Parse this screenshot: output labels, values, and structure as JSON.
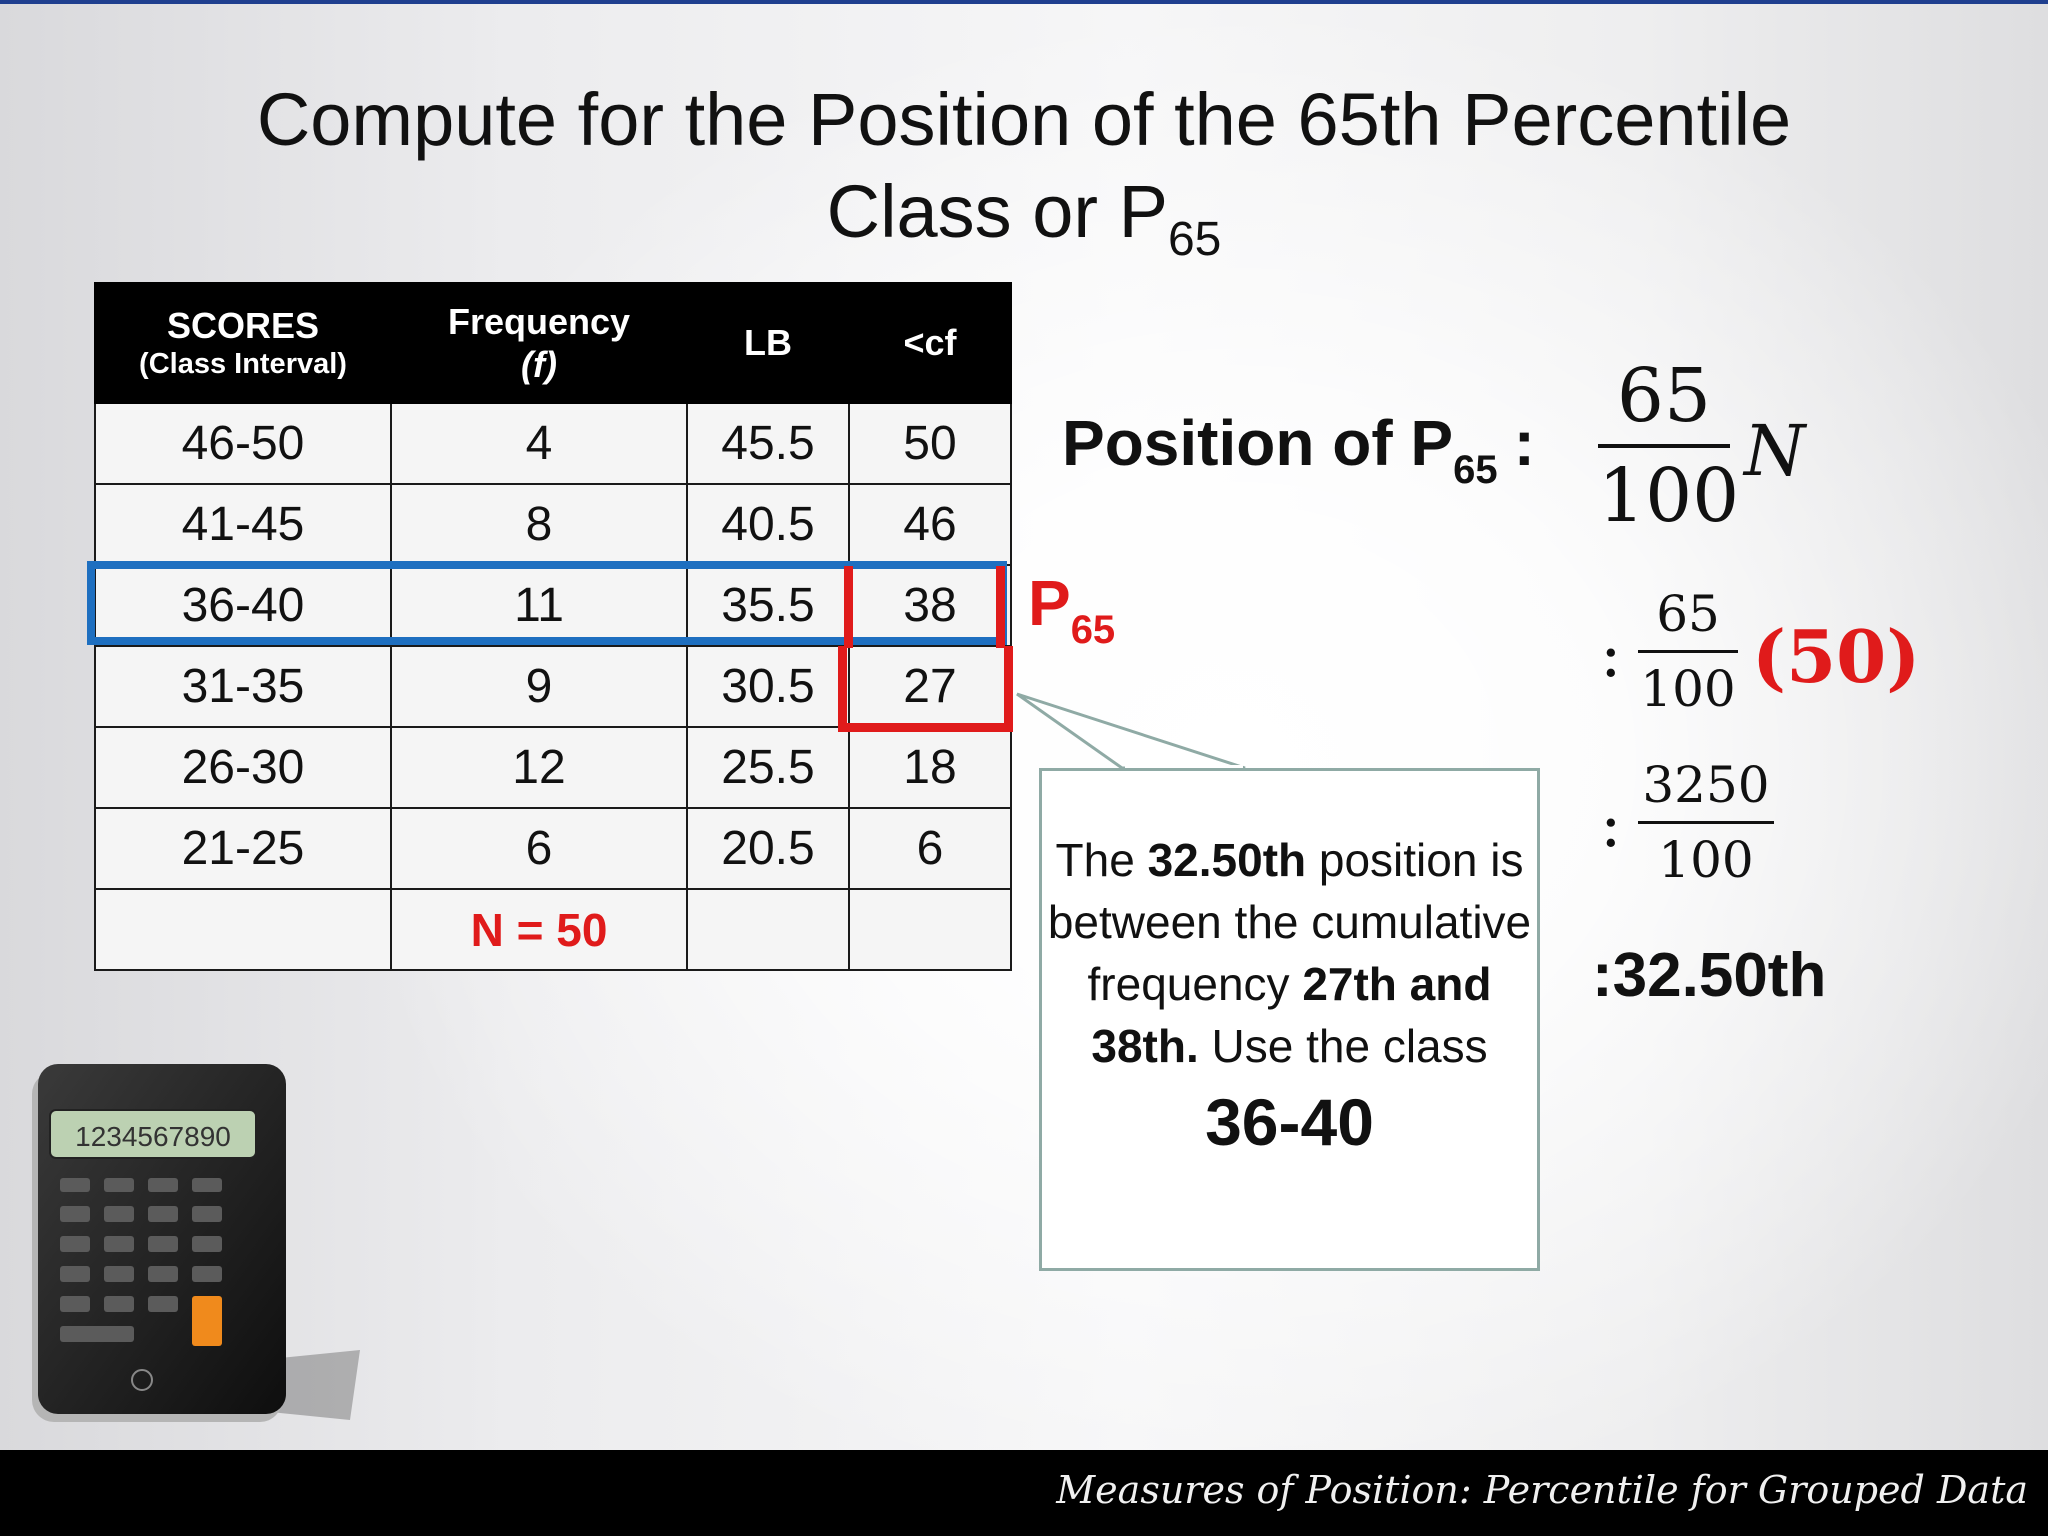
{
  "title": {
    "line1": "Compute for the Position of the 65th Percentile",
    "line2": "Class or P",
    "line2_sub": "65"
  },
  "table": {
    "headers": {
      "scores": "SCORES",
      "scores_sub": "(Class Interval)",
      "frequency": "Frequency",
      "frequency_sub": "(f)",
      "lb": "LB",
      "cf": "<cf"
    },
    "rows": [
      [
        "46-50",
        "4",
        "45.5",
        "50"
      ],
      [
        "41-45",
        "8",
        "40.5",
        "46"
      ],
      [
        "36-40",
        "11",
        "35.5",
        "38"
      ],
      [
        "31-35",
        "9",
        "30.5",
        "27"
      ],
      [
        "26-30",
        "12",
        "25.5",
        "18"
      ],
      [
        "21-25",
        "6",
        "20.5",
        "6"
      ]
    ],
    "total": "N = 50"
  },
  "marker": {
    "text": "P",
    "sub": "65"
  },
  "callout": {
    "t1": "The ",
    "t2": "32.50th",
    "t3": "position is between the cumulative frequency ",
    "t4": "27th and 38th.",
    "t5": " Use the class",
    "t6": "36-40"
  },
  "formula": {
    "label": "Position of P",
    "label_sub": "65",
    "colon": ":",
    "f1_num": "65",
    "f1_den": "100",
    "f1_var": "N",
    "f2_num": "65",
    "f2_den": "100",
    "f2_mult": "(50)",
    "f3_num": "3250",
    "f3_den": "100",
    "result": ":32.50th"
  },
  "calculator": {
    "display": "1234567890"
  },
  "footer": "Measures of Position: Percentile for Grouped Data",
  "colors": {
    "accent_red": "#e01b1b",
    "highlight_blue": "#1e6fc0",
    "header_black": "#000000"
  }
}
